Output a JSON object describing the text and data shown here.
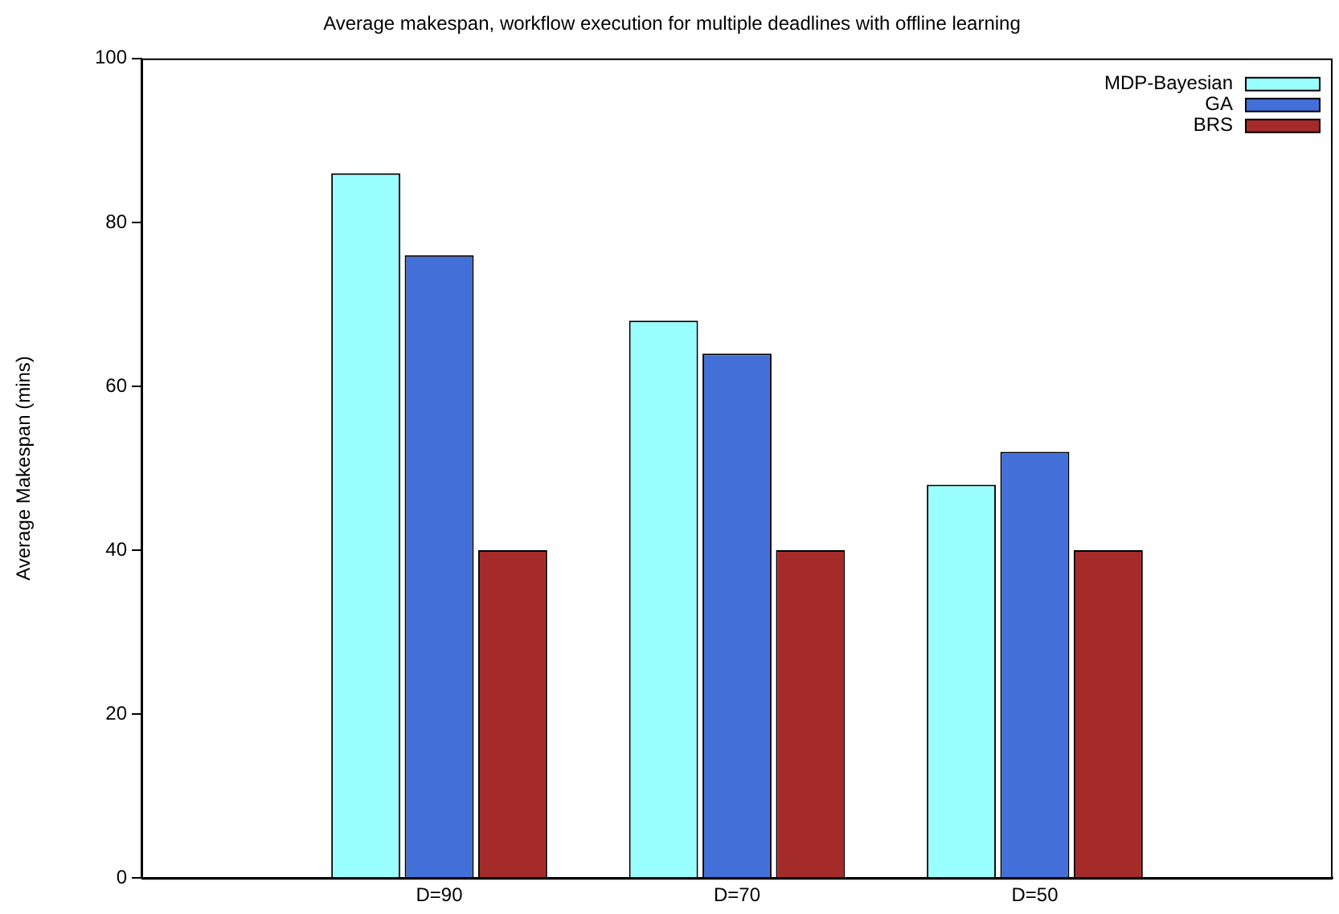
{
  "chart_data": {
    "type": "bar",
    "title": "Average makespan, workflow execution for multiple deadlines with offline learning",
    "ylabel": "Average Makespan (mins)",
    "categories": [
      null,
      "D=90",
      "D=70",
      "D=50",
      null
    ],
    "series": [
      {
        "name": "MDP-Bayesian",
        "color": "#99ffff",
        "values": [
          null,
          86,
          68,
          48,
          null
        ]
      },
      {
        "name": "GA",
        "color": "#4370d8",
        "values": [
          null,
          76,
          64,
          52,
          null
        ]
      },
      {
        "name": "BRS",
        "color": "#a52a2a",
        "values": [
          null,
          40,
          40,
          40,
          null
        ]
      }
    ],
    "ylim": [
      0,
      100
    ],
    "yticks": [
      0,
      20,
      40,
      60,
      80,
      100
    ],
    "grid": false,
    "legend": "top right"
  }
}
